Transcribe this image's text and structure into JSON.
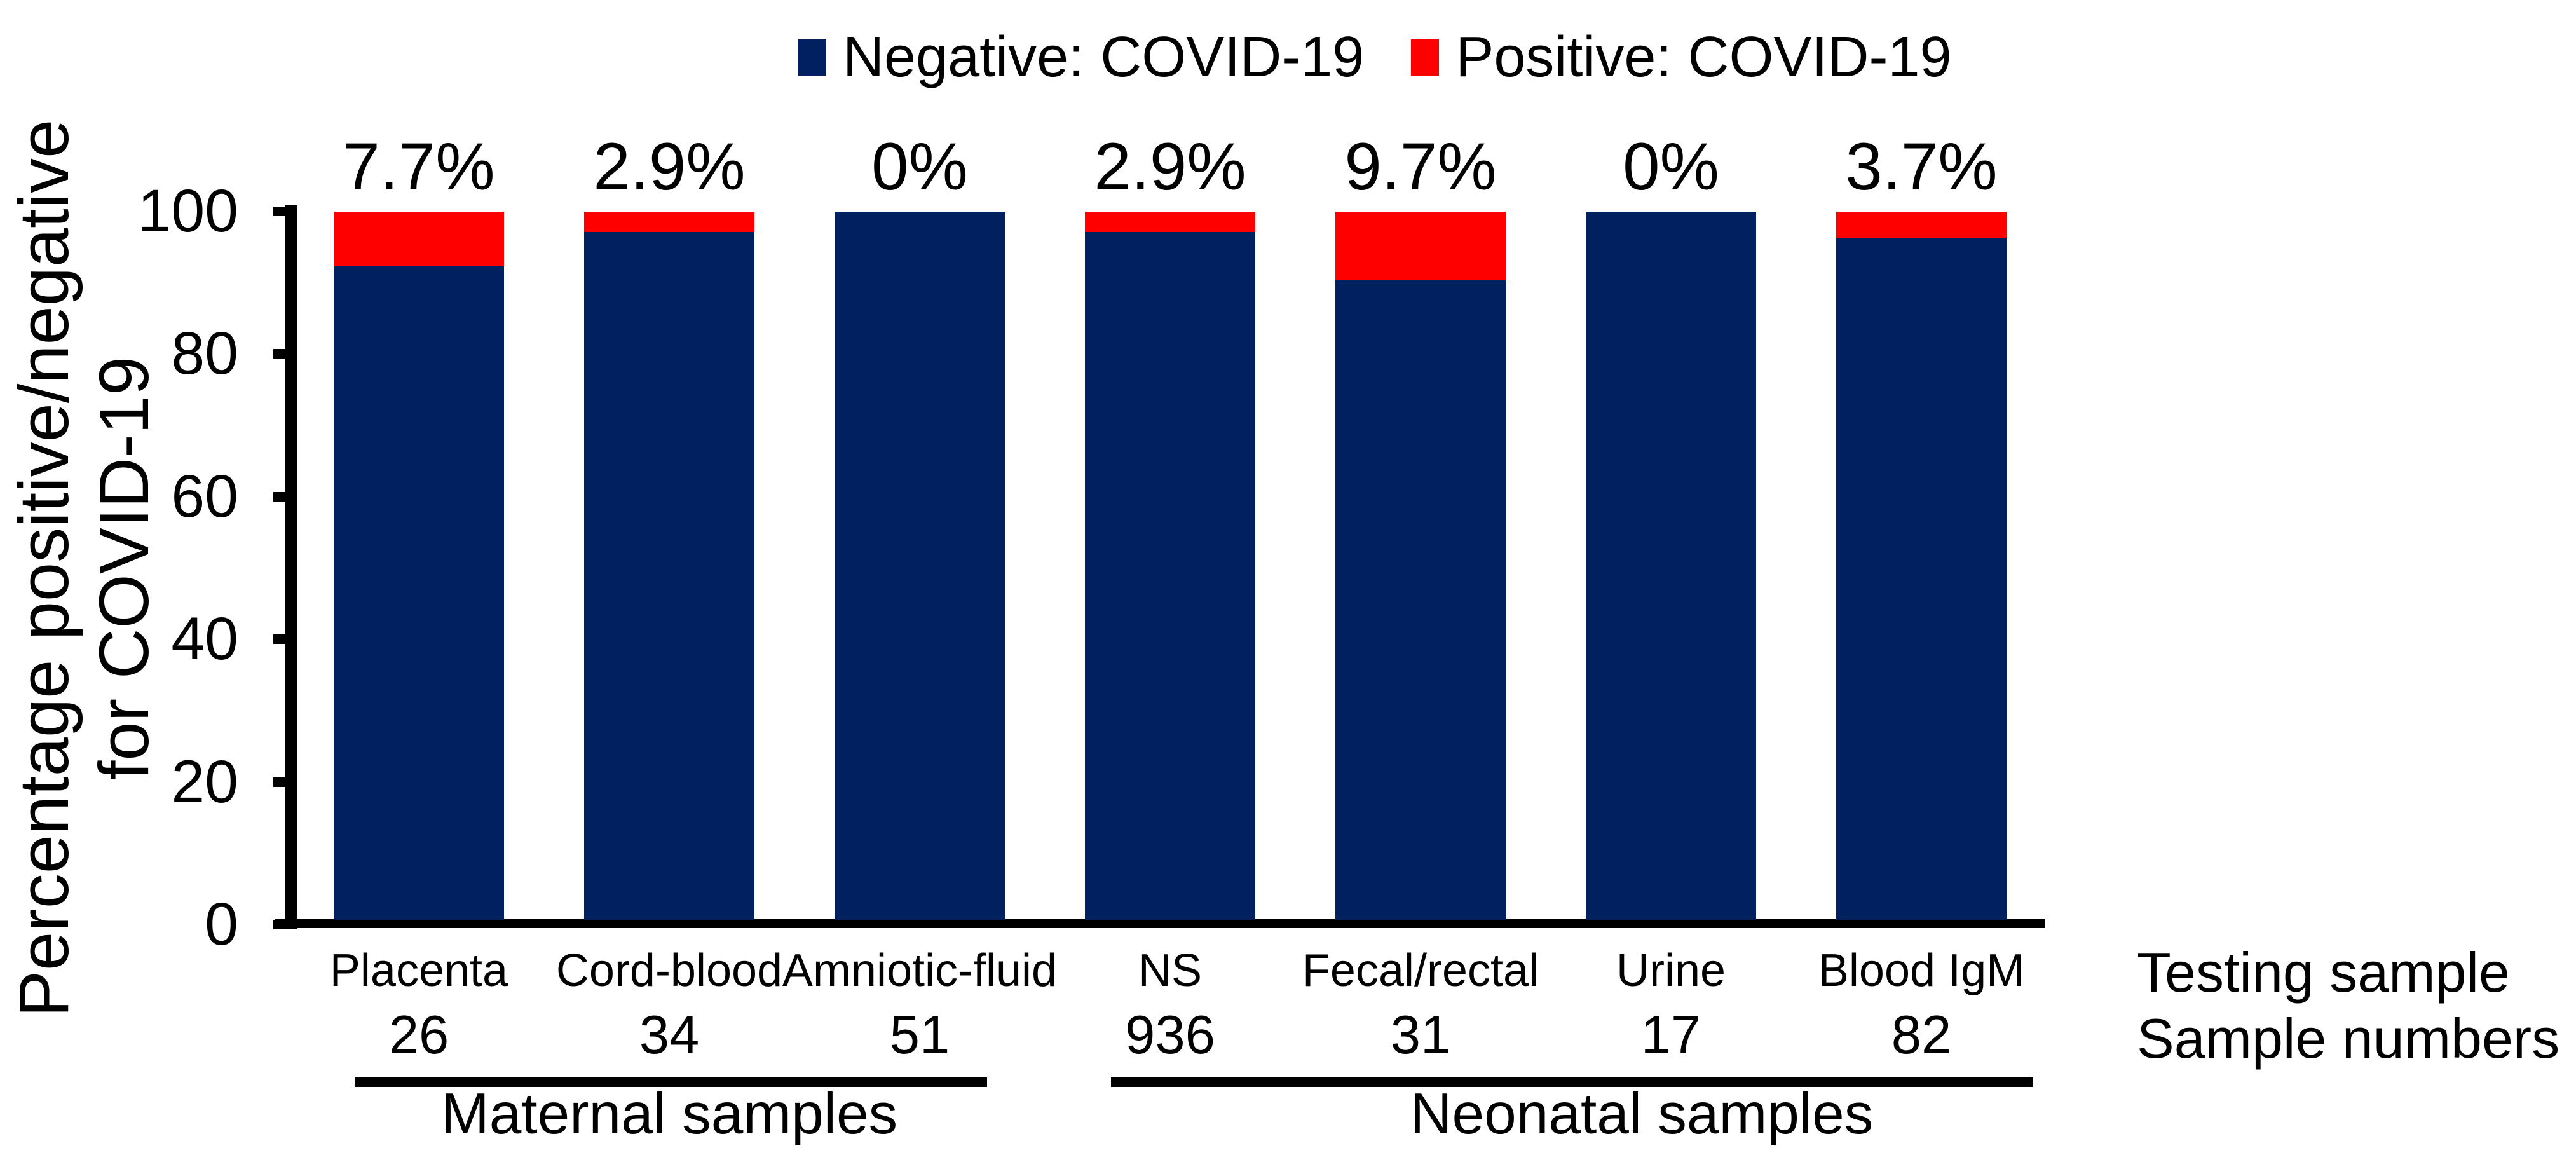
{
  "legend": [
    {
      "label": "Negative: COVID-19",
      "color": "#002060"
    },
    {
      "label": "Positive: COVID-19",
      "color": "#FF0000"
    }
  ],
  "y_axis": {
    "title_line1": "Percentage positive/negative",
    "title_line2": "for COVID-19",
    "ticks": [
      0,
      20,
      40,
      60,
      80,
      100
    ]
  },
  "x_axis": {
    "testing_sample_label": "Testing sample",
    "sample_numbers_label": "Sample numbers"
  },
  "chart_data": {
    "type": "bar",
    "stacked": true,
    "categories": [
      "Placenta",
      "Cord-blood",
      "Amniotic-fluid",
      "NS",
      "Fecal/rectal",
      "Urine",
      "Blood IgM"
    ],
    "sample_numbers": [
      "26",
      "34",
      "51",
      "936",
      "31",
      "17",
      "82"
    ],
    "series": [
      {
        "name": "Negative: COVID-19",
        "color": "#002060",
        "values": [
          92.3,
          97.1,
          100,
          97.1,
          90.3,
          100,
          96.3
        ]
      },
      {
        "name": "Positive: COVID-19",
        "color": "#FF0000",
        "values": [
          7.7,
          2.9,
          0,
          2.9,
          9.7,
          0,
          3.7
        ]
      }
    ],
    "bar_labels": [
      "7.7%",
      "2.9%",
      "0%",
      "2.9%",
      "9.7%",
      "0%",
      "3.7%"
    ],
    "ylabel": "Percentage positive/negative for COVID-19",
    "ylim": [
      0,
      100
    ],
    "grid": false,
    "legend_position": "top",
    "groups": [
      {
        "label": "Maternal samples",
        "from": 0,
        "to": 2
      },
      {
        "label": "Neonatal samples",
        "from": 3,
        "to": 6
      }
    ]
  }
}
